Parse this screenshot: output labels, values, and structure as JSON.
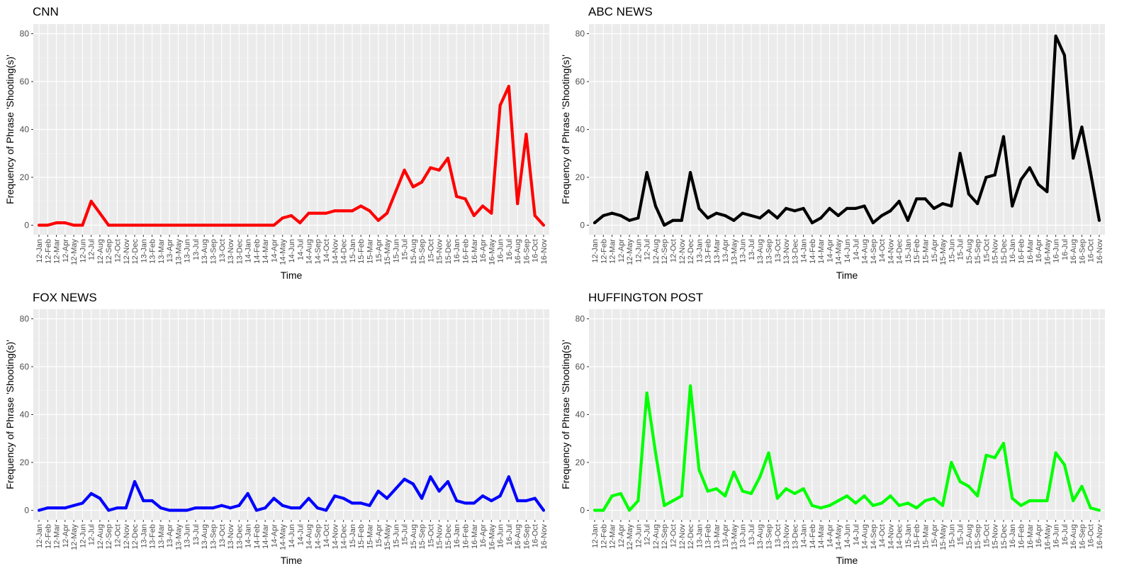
{
  "chart_data": [
    {
      "type": "line",
      "title": "CNN",
      "xlabel": "Time",
      "ylabel": "Frequency of Phrase 'Shooting(s)'",
      "ylim": [
        -4,
        84
      ],
      "yticks": [
        0,
        20,
        40,
        60,
        80
      ],
      "grid": true,
      "color": "#ff0000",
      "categories": [
        "12-Jan",
        "12-Feb",
        "12-Mar",
        "12-Apr",
        "12-May",
        "12-Jun",
        "12-Jul",
        "12-Aug",
        "12-Sep",
        "12-Oct",
        "12-Nov",
        "12-Dec",
        "13-Jan",
        "13-Feb",
        "13-Mar",
        "13-Apr",
        "13-May",
        "13-Jun",
        "13-Jul",
        "13-Aug",
        "13-Sep",
        "13-Oct",
        "13-Nov",
        "13-Dec",
        "14-Jan",
        "14-Feb",
        "14-Mar",
        "14-Apr",
        "14-May",
        "14-Jun",
        "14-Jul",
        "14-Aug",
        "14-Sep",
        "14-Oct",
        "14-Nov",
        "14-Dec",
        "15-Jan",
        "15-Feb",
        "15-Mar",
        "15-Apr",
        "15-May",
        "15-Jun",
        "15-Jul",
        "15-Aug",
        "15-Sep",
        "15-Oct",
        "15-Nov",
        "15-Dec",
        "16-Jan",
        "16-Feb",
        "16-Mar",
        "16-Apr",
        "16-May",
        "16-Jun",
        "16-Jul",
        "16-Aug",
        "16-Sep",
        "16-Oct",
        "16-Nov"
      ],
      "values": [
        0,
        0,
        1,
        1,
        0,
        0,
        10,
        5,
        0,
        0,
        0,
        0,
        0,
        0,
        0,
        0,
        0,
        0,
        0,
        0,
        0,
        0,
        0,
        0,
        0,
        0,
        0,
        0,
        3,
        4,
        1,
        5,
        5,
        5,
        6,
        6,
        6,
        8,
        6,
        2,
        5,
        14,
        23,
        16,
        18,
        24,
        23,
        28,
        12,
        11,
        4,
        8,
        5,
        50,
        58,
        9,
        38,
        4,
        0
      ]
    },
    {
      "type": "line",
      "title": "ABC NEWS",
      "xlabel": "Time",
      "ylabel": "Frequency of Phrase 'Shooting(s)'",
      "ylim": [
        -4,
        84
      ],
      "yticks": [
        0,
        20,
        40,
        60,
        80
      ],
      "grid": true,
      "color": "#000000",
      "categories": [
        "12-Jan",
        "12-Feb",
        "12-Mar",
        "12-Apr",
        "12-May",
        "12-Jun",
        "12-Jul",
        "12-Aug",
        "12-Sep",
        "12-Oct",
        "12-Nov",
        "12-Dec",
        "13-Jan",
        "13-Feb",
        "13-Mar",
        "13-Apr",
        "13-May",
        "13-Jun",
        "13-Jul",
        "13-Aug",
        "13-Sep",
        "13-Oct",
        "13-Nov",
        "13-Dec",
        "14-Jan",
        "14-Feb",
        "14-Mar",
        "14-Apr",
        "14-May",
        "14-Jun",
        "14-Jul",
        "14-Aug",
        "14-Sep",
        "14-Oct",
        "14-Nov",
        "14-Dec",
        "15-Jan",
        "15-Feb",
        "15-Mar",
        "15-Apr",
        "15-May",
        "15-Jun",
        "15-Jul",
        "15-Aug",
        "15-Sep",
        "15-Oct",
        "15-Nov",
        "15-Dec",
        "16-Jan",
        "16-Feb",
        "16-Mar",
        "16-Apr",
        "16-May",
        "16-Jun",
        "16-Jul",
        "16-Aug",
        "16-Sep",
        "16-Oct",
        "16-Nov"
      ],
      "values": [
        1,
        4,
        5,
        4,
        2,
        3,
        22,
        8,
        0,
        2,
        2,
        22,
        7,
        3,
        5,
        4,
        2,
        5,
        4,
        3,
        6,
        3,
        7,
        6,
        7,
        1,
        3,
        7,
        4,
        7,
        7,
        8,
        1,
        4,
        6,
        10,
        2,
        11,
        11,
        7,
        9,
        8,
        30,
        13,
        9,
        20,
        21,
        37,
        8,
        19,
        24,
        17,
        14,
        79,
        71,
        28,
        41,
        22,
        2
      ]
    },
    {
      "type": "line",
      "title": "FOX NEWS",
      "xlabel": "Time",
      "ylabel": "Frequency of Phrase 'Shooting(s)'",
      "ylim": [
        -4,
        84
      ],
      "yticks": [
        0,
        20,
        40,
        60,
        80
      ],
      "grid": true,
      "color": "#0000ff",
      "categories": [
        "12-Jan",
        "12-Feb",
        "12-Mar",
        "12-Apr",
        "12-May",
        "12-Jun",
        "12-Jul",
        "12-Aug",
        "12-Sep",
        "12-Oct",
        "12-Nov",
        "12-Dec",
        "13-Jan",
        "13-Feb",
        "13-Mar",
        "13-Apr",
        "13-May",
        "13-Jun",
        "13-Jul",
        "13-Aug",
        "13-Sep",
        "13-Oct",
        "13-Nov",
        "13-Dec",
        "14-Jan",
        "14-Feb",
        "14-Mar",
        "14-Apr",
        "14-May",
        "14-Jun",
        "14-Jul",
        "14-Aug",
        "14-Sep",
        "14-Oct",
        "14-Nov",
        "14-Dec",
        "15-Jan",
        "15-Feb",
        "15-Mar",
        "15-Apr",
        "15-May",
        "15-Jun",
        "15-Jul",
        "15-Aug",
        "15-Sep",
        "15-Oct",
        "15-Nov",
        "15-Dec",
        "16-Jan",
        "16-Feb",
        "16-Mar",
        "16-Apr",
        "16-May",
        "16-Jun",
        "16-Jul",
        "16-Aug",
        "16-Sep",
        "16-Oct",
        "16-Nov"
      ],
      "values": [
        0,
        1,
        1,
        1,
        2,
        3,
        7,
        5,
        0,
        1,
        1,
        12,
        4,
        4,
        1,
        0,
        0,
        0,
        1,
        1,
        1,
        2,
        1,
        2,
        7,
        0,
        1,
        5,
        2,
        1,
        1,
        5,
        1,
        0,
        6,
        5,
        3,
        3,
        2,
        8,
        5,
        9,
        13,
        11,
        5,
        14,
        8,
        12,
        4,
        3,
        3,
        6,
        4,
        6,
        14,
        4,
        4,
        5,
        0
      ]
    },
    {
      "type": "line",
      "title": "HUFFINGTON POST",
      "xlabel": "Time",
      "ylabel": "Frequency of Phrase 'Shooting(s)'",
      "ylim": [
        -4,
        84
      ],
      "yticks": [
        0,
        20,
        40,
        60,
        80
      ],
      "grid": true,
      "color": "#00ff00",
      "categories": [
        "12-Jan",
        "12-Feb",
        "12-Mar",
        "12-Apr",
        "12-May",
        "12-Jun",
        "12-Jul",
        "12-Aug",
        "12-Sep",
        "12-Oct",
        "12-Nov",
        "12-Dec",
        "13-Jan",
        "13-Feb",
        "13-Mar",
        "13-Apr",
        "13-May",
        "13-Jun",
        "13-Jul",
        "13-Aug",
        "13-Sep",
        "13-Oct",
        "13-Nov",
        "13-Dec",
        "14-Jan",
        "14-Feb",
        "14-Mar",
        "14-Apr",
        "14-May",
        "14-Jun",
        "14-Jul",
        "14-Aug",
        "14-Sep",
        "14-Oct",
        "14-Nov",
        "14-Dec",
        "15-Jan",
        "15-Feb",
        "15-Mar",
        "15-Apr",
        "15-May",
        "15-Jun",
        "15-Jul",
        "15-Aug",
        "15-Sep",
        "15-Oct",
        "15-Nov",
        "15-Dec",
        "16-Jan",
        "16-Feb",
        "16-Mar",
        "16-Apr",
        "16-May",
        "16-Jun",
        "16-Jul",
        "16-Aug",
        "16-Sep",
        "16-Oct",
        "16-Nov"
      ],
      "values": [
        0,
        0,
        6,
        7,
        0,
        4,
        49,
        24,
        2,
        4,
        6,
        52,
        17,
        8,
        9,
        6,
        16,
        8,
        7,
        14,
        24,
        5,
        9,
        7,
        9,
        2,
        1,
        2,
        4,
        6,
        3,
        6,
        2,
        3,
        6,
        2,
        3,
        1,
        4,
        5,
        2,
        20,
        12,
        10,
        6,
        23,
        22,
        28,
        5,
        2,
        4,
        4,
        4,
        24,
        19,
        4,
        10,
        1,
        0
      ]
    }
  ]
}
